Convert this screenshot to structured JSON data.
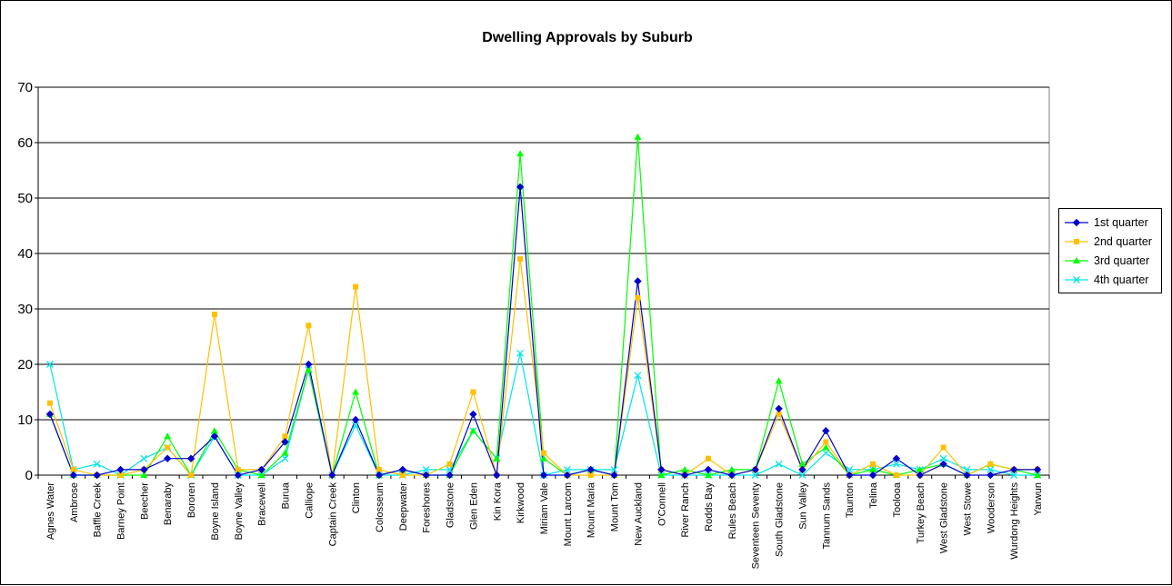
{
  "chart_data": {
    "type": "line",
    "title": "Dwelling Approvals by Suburb",
    "xlabel": "",
    "ylabel": "",
    "ylim": [
      0,
      70
    ],
    "yticks": [
      0,
      10,
      20,
      30,
      40,
      50,
      60,
      70
    ],
    "grid": true,
    "legend_position": "right",
    "categories": [
      "Agnes Water",
      "Ambrose",
      "Baffle Creek",
      "Barney Point",
      "Beecher",
      "Benaraby",
      "Bororen",
      "Boyne Island",
      "Boyne Valley",
      "Bracewell",
      "Burua",
      "Calliope",
      "Captain Creek",
      "Clinton",
      "Colosseum",
      "Deepwater",
      "Foreshores",
      "Gladstone",
      "Glen Eden",
      "Kin Kora",
      "Kirkwood",
      "Miriam Vale",
      "Mount Larcom",
      "Mount Maria",
      "Mount Tom",
      "New Auckland",
      "O'Connell",
      "River Ranch",
      "Rodds Bay",
      "Rules Beach",
      "Seventeen Seventy",
      "South Gladstone",
      "Sun Valley",
      "Tannum Sands",
      "Taunton",
      "Telina",
      "Toolooa",
      "Turkey Beach",
      "West Gladstone",
      "West Stowe",
      "Wooderson",
      "Wurdong Heights",
      "Yarwun"
    ],
    "series": [
      {
        "name": "1st quarter",
        "color": "#0000cc",
        "marker": "diamond",
        "values": [
          11,
          0,
          0,
          1,
          1,
          3,
          3,
          7,
          0,
          1,
          6,
          20,
          0,
          10,
          0,
          1,
          0,
          0,
          11,
          0,
          52,
          0,
          0,
          1,
          0,
          35,
          1,
          0,
          1,
          0,
          1,
          12,
          1,
          8,
          0,
          0,
          3,
          0,
          2,
          0,
          0,
          1,
          1
        ]
      },
      {
        "name": "2nd quarter",
        "color": "#ffc000",
        "marker": "square",
        "values": [
          13,
          1,
          0,
          0,
          1,
          5,
          0,
          29,
          1,
          1,
          7,
          27,
          0,
          34,
          1,
          0,
          0,
          2,
          15,
          0,
          39,
          4,
          0,
          0,
          0,
          32,
          1,
          0,
          3,
          0,
          1,
          11,
          1,
          6,
          0,
          2,
          0,
          0,
          5,
          0,
          2,
          1,
          1
        ]
      },
      {
        "name": "3rd quarter",
        "color": "#00ff00",
        "marker": "triangle",
        "values": [
          11,
          0,
          0,
          0,
          0,
          7,
          0,
          8,
          1,
          0,
          4,
          19,
          0,
          15,
          0,
          1,
          0,
          0,
          8,
          3,
          58,
          3,
          0,
          1,
          0,
          61,
          0,
          1,
          0,
          1,
          1,
          17,
          2,
          5,
          0,
          1,
          0,
          1,
          2,
          0,
          2,
          1,
          0
        ]
      },
      {
        "name": "4th quarter",
        "color": "#00e5e5",
        "marker": "x",
        "values": [
          20,
          1,
          2,
          0,
          3,
          5,
          0,
          7,
          0,
          0,
          3,
          19,
          0,
          9,
          0,
          0,
          1,
          1,
          8,
          3,
          22,
          0,
          1,
          1,
          1,
          18,
          0,
          0,
          0,
          0,
          0,
          2,
          0,
          4,
          1,
          1,
          2,
          1,
          3,
          1,
          1,
          0,
          0
        ]
      }
    ]
  }
}
